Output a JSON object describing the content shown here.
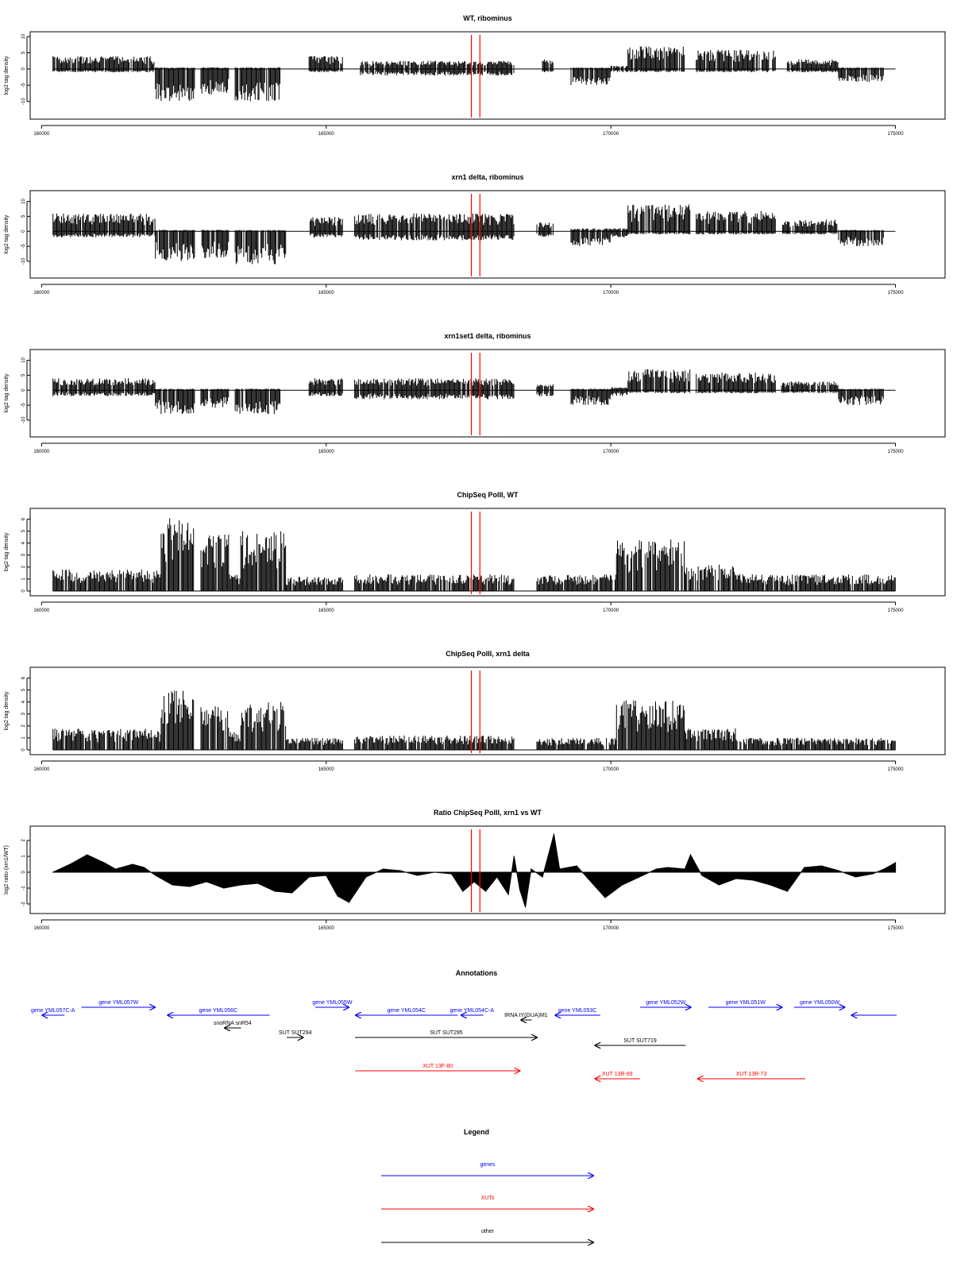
{
  "chart_data": [
    {
      "type": "area",
      "title": "WT, ribominus",
      "ylabel": "log2 tag density",
      "xlabel": "",
      "xlim": [
        160000,
        175000
      ],
      "ylim": [
        -14,
        10
      ],
      "yticks": [
        10,
        5,
        0,
        -5,
        -10
      ],
      "xticks": [
        160000,
        165000,
        170000,
        175000
      ],
      "grid": false,
      "legend": "none",
      "vlines": [
        167550,
        167700
      ],
      "segments": [
        {
          "start": 160200,
          "end": 162000,
          "top": 4,
          "bottom": -1
        },
        {
          "start": 162000,
          "end": 162700,
          "top": 0.5,
          "bottom": -10
        },
        {
          "start": 162800,
          "end": 163300,
          "top": 0.5,
          "bottom": -8
        },
        {
          "start": 163400,
          "end": 164200,
          "top": 0.5,
          "bottom": -10
        },
        {
          "start": 164700,
          "end": 165300,
          "top": 4,
          "bottom": -1
        },
        {
          "start": 165600,
          "end": 168300,
          "top": 2.5,
          "bottom": -2
        },
        {
          "start": 168800,
          "end": 169000,
          "top": 3,
          "bottom": -1
        },
        {
          "start": 169300,
          "end": 170000,
          "top": 0.5,
          "bottom": -5
        },
        {
          "start": 170000,
          "end": 170300,
          "top": 1,
          "bottom": -1
        },
        {
          "start": 170300,
          "end": 171300,
          "top": 7,
          "bottom": -1
        },
        {
          "start": 171500,
          "end": 172900,
          "top": 6,
          "bottom": -1
        },
        {
          "start": 173100,
          "end": 174000,
          "top": 3,
          "bottom": -1
        },
        {
          "start": 174000,
          "end": 174800,
          "top": 0.5,
          "bottom": -4
        }
      ]
    },
    {
      "type": "area",
      "title": "xrn1 delta, ribominus",
      "ylabel": "log2 tag density",
      "xlabel": "",
      "xlim": [
        160000,
        175000
      ],
      "ylim": [
        -14,
        12
      ],
      "yticks": [
        10,
        5,
        0,
        -5,
        -10
      ],
      "xticks": [
        160000,
        165000,
        170000,
        175000
      ],
      "grid": false,
      "legend": "none",
      "vlines": [
        167550,
        167700
      ],
      "segments": [
        {
          "start": 160200,
          "end": 162000,
          "top": 6,
          "bottom": -2
        },
        {
          "start": 162000,
          "end": 162700,
          "top": 0.5,
          "bottom": -10
        },
        {
          "start": 162800,
          "end": 163300,
          "top": 0.5,
          "bottom": -9
        },
        {
          "start": 163400,
          "end": 164300,
          "top": 0.5,
          "bottom": -11
        },
        {
          "start": 164700,
          "end": 165300,
          "top": 5,
          "bottom": -2
        },
        {
          "start": 165500,
          "end": 168300,
          "top": 6,
          "bottom": -3
        },
        {
          "start": 168700,
          "end": 169000,
          "top": 3,
          "bottom": -2
        },
        {
          "start": 169300,
          "end": 170000,
          "top": 1,
          "bottom": -5
        },
        {
          "start": 170000,
          "end": 170300,
          "top": 1,
          "bottom": -2
        },
        {
          "start": 170300,
          "end": 171400,
          "top": 9,
          "bottom": -1
        },
        {
          "start": 171500,
          "end": 172900,
          "top": 7,
          "bottom": -1
        },
        {
          "start": 173000,
          "end": 174000,
          "top": 4,
          "bottom": -1
        },
        {
          "start": 174000,
          "end": 174800,
          "top": 0.5,
          "bottom": -5
        }
      ]
    },
    {
      "type": "area",
      "title": "xrn1set1 delta, ribominus",
      "ylabel": "log2 tag density",
      "xlabel": "",
      "xlim": [
        160000,
        175000
      ],
      "ylim": [
        -14,
        12
      ],
      "yticks": [
        10,
        5,
        0,
        -5,
        -10
      ],
      "xticks": [
        160000,
        165000,
        170000,
        175000
      ],
      "grid": false,
      "legend": "none",
      "vlines": [
        167550,
        167700
      ],
      "segments": [
        {
          "start": 160200,
          "end": 162000,
          "top": 4,
          "bottom": -2
        },
        {
          "start": 162000,
          "end": 162700,
          "top": 0.5,
          "bottom": -8
        },
        {
          "start": 162800,
          "end": 163300,
          "top": 0.5,
          "bottom": -6
        },
        {
          "start": 163400,
          "end": 164200,
          "top": 0.5,
          "bottom": -8
        },
        {
          "start": 164700,
          "end": 165300,
          "top": 4,
          "bottom": -2
        },
        {
          "start": 165500,
          "end": 168300,
          "top": 4,
          "bottom": -3
        },
        {
          "start": 168700,
          "end": 169000,
          "top": 2,
          "bottom": -2
        },
        {
          "start": 169300,
          "end": 170000,
          "top": 0.5,
          "bottom": -5
        },
        {
          "start": 170000,
          "end": 170300,
          "top": 1,
          "bottom": -2
        },
        {
          "start": 170300,
          "end": 171400,
          "top": 7,
          "bottom": -1
        },
        {
          "start": 171500,
          "end": 172900,
          "top": 6,
          "bottom": -1
        },
        {
          "start": 173000,
          "end": 174000,
          "top": 3,
          "bottom": -1
        },
        {
          "start": 174000,
          "end": 174800,
          "top": 0.5,
          "bottom": -5
        }
      ]
    },
    {
      "type": "area",
      "title": "ChipSeq PolII, WT",
      "ylabel": "log2 tag density",
      "xlabel": "",
      "xlim": [
        160000,
        175000
      ],
      "ylim": [
        0,
        6.5
      ],
      "yticks": [
        0,
        1,
        2,
        3,
        4,
        5,
        6
      ],
      "xticks": [
        160000,
        165000,
        170000,
        175000
      ],
      "grid": false,
      "legend": "none",
      "vlines": [
        167550,
        167700
      ],
      "segments": [
        {
          "start": 160200,
          "end": 162100,
          "top": 1.8,
          "bottom": 0
        },
        {
          "start": 162100,
          "end": 162700,
          "top": 6.2,
          "bottom": 0
        },
        {
          "start": 162800,
          "end": 163300,
          "top": 4.8,
          "bottom": 0
        },
        {
          "start": 163300,
          "end": 163500,
          "top": 1.5,
          "bottom": 0
        },
        {
          "start": 163500,
          "end": 164300,
          "top": 5.0,
          "bottom": 0
        },
        {
          "start": 164300,
          "end": 165300,
          "top": 1.2,
          "bottom": 0
        },
        {
          "start": 165500,
          "end": 168300,
          "top": 1.4,
          "bottom": 0
        },
        {
          "start": 168700,
          "end": 170100,
          "top": 1.4,
          "bottom": 0
        },
        {
          "start": 170100,
          "end": 171300,
          "top": 4.3,
          "bottom": 0
        },
        {
          "start": 171300,
          "end": 172200,
          "top": 2.2,
          "bottom": 0
        },
        {
          "start": 172200,
          "end": 175000,
          "top": 1.4,
          "bottom": 0
        }
      ]
    },
    {
      "type": "area",
      "title": "ChipSeq PolII, xrn1 delta",
      "ylabel": "log2 tag density",
      "xlabel": "",
      "xlim": [
        160000,
        175000
      ],
      "ylim": [
        0,
        6.5
      ],
      "yticks": [
        0,
        1,
        2,
        3,
        4,
        5,
        6
      ],
      "xticks": [
        160000,
        165000,
        170000,
        175000
      ],
      "grid": false,
      "legend": "none",
      "vlines": [
        167550,
        167700
      ],
      "segments": [
        {
          "start": 160200,
          "end": 162100,
          "top": 1.8,
          "bottom": 0
        },
        {
          "start": 162100,
          "end": 162700,
          "top": 5.0,
          "bottom": 0
        },
        {
          "start": 162800,
          "end": 163300,
          "top": 3.8,
          "bottom": 0
        },
        {
          "start": 163300,
          "end": 163500,
          "top": 1.5,
          "bottom": 0
        },
        {
          "start": 163500,
          "end": 164300,
          "top": 4.0,
          "bottom": 0
        },
        {
          "start": 164300,
          "end": 165300,
          "top": 1.0,
          "bottom": 0
        },
        {
          "start": 165500,
          "end": 168300,
          "top": 1.2,
          "bottom": 0
        },
        {
          "start": 168700,
          "end": 170100,
          "top": 1.0,
          "bottom": 0
        },
        {
          "start": 170100,
          "end": 171300,
          "top": 4.2,
          "bottom": 0
        },
        {
          "start": 171300,
          "end": 172200,
          "top": 1.8,
          "bottom": 0
        },
        {
          "start": 172200,
          "end": 175000,
          "top": 1.0,
          "bottom": 0
        }
      ]
    },
    {
      "type": "area",
      "title": "Ratio ChipSeq PolII, xrn1 vs WT",
      "ylabel": "log2 ratio (xrn1/WT)",
      "xlabel": "",
      "xlim": [
        160000,
        175000
      ],
      "ylim": [
        -2.3,
        2.6
      ],
      "yticks": [
        2,
        1,
        0,
        -1,
        -2
      ],
      "xticks": [
        160000,
        165000,
        170000,
        175000
      ],
      "grid": false,
      "legend": "none",
      "vlines": [
        167550,
        167700
      ],
      "points": [
        [
          160200,
          0.0
        ],
        [
          160500,
          0.5
        ],
        [
          160800,
          1.1
        ],
        [
          161100,
          0.6
        ],
        [
          161300,
          0.2
        ],
        [
          161600,
          0.5
        ],
        [
          161800,
          0.3
        ],
        [
          162000,
          -0.2
        ],
        [
          162300,
          -0.8
        ],
        [
          162600,
          -0.9
        ],
        [
          162900,
          -0.6
        ],
        [
          163200,
          -1.0
        ],
        [
          163500,
          -0.8
        ],
        [
          163800,
          -0.7
        ],
        [
          164100,
          -1.2
        ],
        [
          164400,
          -1.3
        ],
        [
          164700,
          -0.3
        ],
        [
          165000,
          -0.2
        ],
        [
          165200,
          -1.5
        ],
        [
          165400,
          -1.9
        ],
        [
          165700,
          -0.3
        ],
        [
          166000,
          0.2
        ],
        [
          166300,
          0.1
        ],
        [
          166600,
          -0.2
        ],
        [
          166900,
          0.0
        ],
        [
          167200,
          -0.1
        ],
        [
          167400,
          -1.2
        ],
        [
          167600,
          -0.6
        ],
        [
          167800,
          -1.2
        ],
        [
          168000,
          -0.3
        ],
        [
          168200,
          -1.4
        ],
        [
          168300,
          1.0
        ],
        [
          168400,
          -1.1
        ],
        [
          168500,
          -2.2
        ],
        [
          168600,
          0.2
        ],
        [
          168800,
          -0.3
        ],
        [
          169000,
          2.4
        ],
        [
          169100,
          0.2
        ],
        [
          169400,
          0.4
        ],
        [
          169700,
          -0.8
        ],
        [
          169900,
          -1.6
        ],
        [
          170200,
          -0.8
        ],
        [
          170500,
          -0.3
        ],
        [
          170800,
          0.2
        ],
        [
          171000,
          0.3
        ],
        [
          171300,
          0.2
        ],
        [
          171400,
          1.1
        ],
        [
          171600,
          -0.2
        ],
        [
          171900,
          -0.8
        ],
        [
          172200,
          -0.4
        ],
        [
          172500,
          -0.5
        ],
        [
          172800,
          -0.8
        ],
        [
          173100,
          -1.2
        ],
        [
          173400,
          0.3
        ],
        [
          173700,
          0.4
        ],
        [
          174000,
          0.1
        ],
        [
          174300,
          -0.3
        ],
        [
          174600,
          -0.1
        ],
        [
          174800,
          0.2
        ],
        [
          175000,
          0.6
        ]
      ]
    }
  ],
  "annotations": {
    "title": "Annotations",
    "xlim": [
      160000,
      175000
    ],
    "items": [
      {
        "label": "gene YML057C-A",
        "category": "gene",
        "start": 160400,
        "end": 160000,
        "row": 1
      },
      {
        "label": "gene YML057W",
        "category": "gene",
        "start": 160700,
        "end": 162000,
        "row": 0
      },
      {
        "label": "gene YML056C",
        "category": "gene",
        "start": 164000,
        "end": 162200,
        "row": 1
      },
      {
        "label": "gene YML055W",
        "category": "gene",
        "start": 164800,
        "end": 165400,
        "row": 0
      },
      {
        "label": "gene YML054C",
        "category": "gene",
        "start": 167300,
        "end": 165500,
        "row": 1
      },
      {
        "label": "gene YML054C-A",
        "category": "gene",
        "start": 167750,
        "end": 167350,
        "row": 1
      },
      {
        "label": "gene YML053C",
        "category": "gene",
        "start": 169800,
        "end": 169000,
        "row": 1
      },
      {
        "label": "gene YML052W",
        "category": "gene",
        "start": 170500,
        "end": 171400,
        "row": 0
      },
      {
        "label": "gene YML051W",
        "category": "gene",
        "start": 171700,
        "end": 173000,
        "row": 0
      },
      {
        "label": "gene YML050W",
        "category": "gene",
        "start": 173200,
        "end": 174100,
        "row": 0
      },
      {
        "label": "",
        "category": "gene",
        "start": 175000,
        "end": 174200,
        "row": 1
      },
      {
        "label": "tRNA tY(GUA)M1",
        "category": "other",
        "start": 168600,
        "end": 168400,
        "row": 2
      },
      {
        "label": "snoRNA snR54",
        "category": "other",
        "start": 163500,
        "end": 163200,
        "row": 3
      },
      {
        "label": "SUT SUT294",
        "category": "other",
        "start": 164300,
        "end": 164600,
        "row": 4
      },
      {
        "label": "SUT SUT295",
        "category": "other",
        "start": 165500,
        "end": 168700,
        "row": 4
      },
      {
        "label": "SUT SUT719",
        "category": "other",
        "start": 171300,
        "end": 169700,
        "row": 5
      },
      {
        "label": "XUT 13F-80",
        "category": "xut",
        "start": 165500,
        "end": 168400,
        "row": 6
      },
      {
        "label": "XUT 13R-69",
        "category": "xut",
        "start": 170500,
        "end": 169700,
        "row": 7
      },
      {
        "label": "XUT 13R-73",
        "category": "xut",
        "start": 173400,
        "end": 171500,
        "row": 7
      }
    ]
  },
  "legend": {
    "title": "Legend",
    "entries": [
      {
        "label": "genes",
        "color": "#0000ff"
      },
      {
        "label": "XUTs",
        "color": "#ff0000"
      },
      {
        "label": "other",
        "color": "#000000"
      }
    ]
  },
  "colors": {
    "gene": "#0000ff",
    "xut": "#ff0000",
    "other": "#000000",
    "marker": "#ff0000",
    "signal": "#000000"
  }
}
